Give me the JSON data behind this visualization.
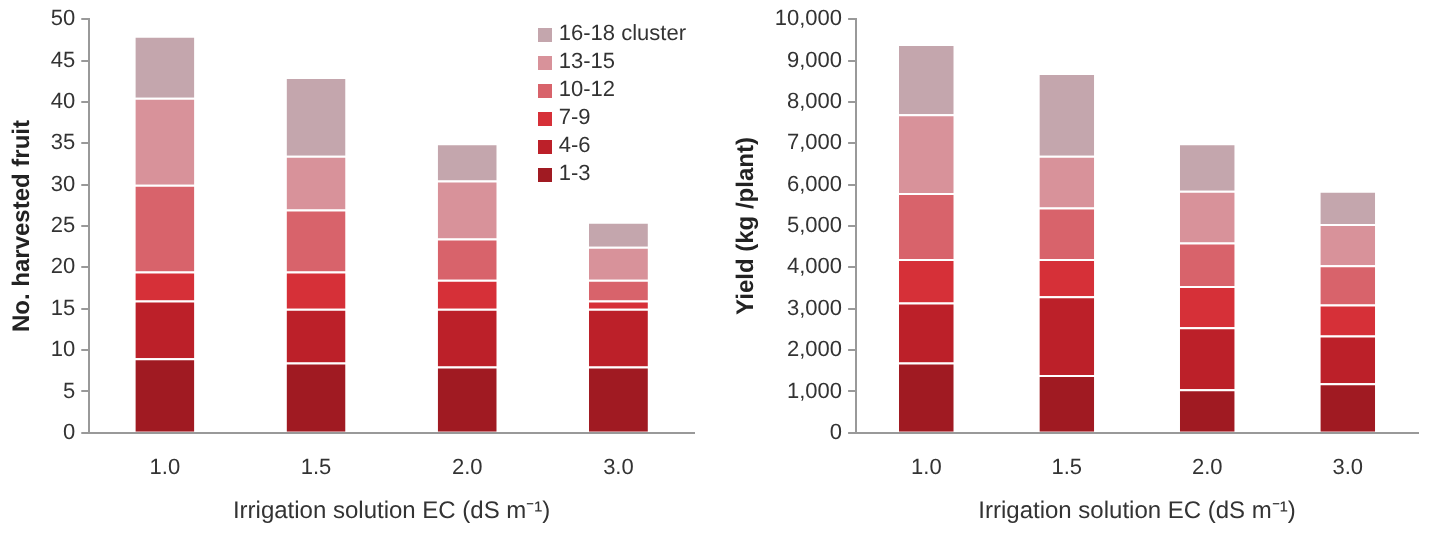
{
  "chart_data": [
    {
      "type": "bar",
      "stacked": true,
      "ylabel": "No. harvested fruit",
      "xlabel": "Irrigation solution EC (dS m⁻¹)",
      "categories": [
        "1.0",
        "1.5",
        "2.0",
        "3.0"
      ],
      "ylim": [
        0,
        50
      ],
      "yticks": [
        0,
        5,
        10,
        15,
        20,
        25,
        30,
        35,
        40,
        45,
        50
      ],
      "grid": false,
      "legend": "top right",
      "series": [
        {
          "name": "1-3",
          "color": "#a01a22",
          "values": [
            9,
            8.5,
            8,
            8
          ]
        },
        {
          "name": "4-6",
          "color": "#bc2029",
          "values": [
            7,
            6.5,
            7,
            7
          ]
        },
        {
          "name": "7-9",
          "color": "#d63038",
          "values": [
            3.5,
            4.5,
            3.5,
            1
          ]
        },
        {
          "name": "10-12",
          "color": "#d8636b",
          "values": [
            10.5,
            7.5,
            5,
            2.5
          ]
        },
        {
          "name": "13-15",
          "color": "#d8929a",
          "values": [
            10.5,
            6.5,
            7,
            4
          ]
        },
        {
          "name": "16-18 cluster",
          "color": "#c4a6ad",
          "values": [
            7.5,
            9.5,
            4.5,
            3
          ]
        }
      ]
    },
    {
      "type": "bar",
      "stacked": true,
      "ylabel": "Yield (kg /plant)",
      "xlabel": "Irrigation solution EC (dS m⁻¹)",
      "categories": [
        "1.0",
        "1.5",
        "2.0",
        "3.0"
      ],
      "ylim": [
        0,
        10000
      ],
      "yticks": [
        0,
        {
          "value": 1000,
          "label": "1,000"
        },
        {
          "value": 2000,
          "label": "2,000"
        },
        {
          "value": 3000,
          "label": "3,000"
        },
        {
          "value": 4000,
          "label": "4,000"
        },
        {
          "value": 5000,
          "label": "5,000"
        },
        {
          "value": 6000,
          "label": "6,000"
        },
        {
          "value": 7000,
          "label": "7,000"
        },
        {
          "value": 8000,
          "label": "8,000"
        },
        {
          "value": 9000,
          "label": "9,000"
        },
        {
          "value": 10000,
          "label": "10,000"
        }
      ],
      "grid": false,
      "series": [
        {
          "color": "#a01a22",
          "values": [
            1700,
            1400,
            1050,
            1200
          ]
        },
        {
          "color": "#bc2029",
          "values": [
            1450,
            1900,
            1500,
            1150
          ]
        },
        {
          "color": "#d63038",
          "values": [
            1050,
            900,
            1000,
            750
          ]
        },
        {
          "color": "#d8636b",
          "values": [
            1600,
            1250,
            1050,
            950
          ]
        },
        {
          "color": "#d8929a",
          "values": [
            1900,
            1250,
            1250,
            1000
          ]
        },
        {
          "color": "#c4a6ad",
          "values": [
            1700,
            2000,
            1150,
            800
          ]
        }
      ]
    }
  ]
}
